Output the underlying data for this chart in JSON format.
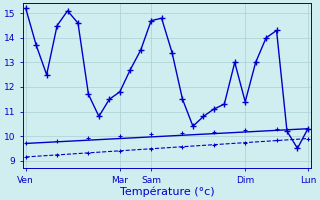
{
  "bg_color": "#d0eef0",
  "grid_color": "#b0d4d8",
  "line_color": "#0000cc",
  "x_tick_labels": {
    "0": "Ven",
    "9": "Mar",
    "12": "Sam",
    "21": "Dim",
    "27": "Lun"
  },
  "ylim": [
    8.7,
    15.4
  ],
  "yticks": [
    9,
    10,
    11,
    12,
    13,
    14,
    15
  ],
  "xlabel": "Température (°c)",
  "main_line_x": [
    0,
    1,
    2,
    3,
    4,
    5,
    6,
    7,
    8,
    9,
    10,
    11,
    12,
    13,
    14,
    15,
    16,
    17,
    18,
    19,
    20,
    21,
    22,
    23,
    24,
    25,
    26,
    27
  ],
  "main_line_y": [
    15.2,
    13.7,
    12.5,
    14.5,
    15.1,
    14.6,
    11.7,
    10.8,
    11.5,
    11.8,
    12.7,
    13.5,
    14.7,
    14.8,
    13.4,
    11.5,
    10.4,
    10.8,
    11.1,
    11.3,
    13.0,
    11.4,
    13.0,
    14.0,
    14.3,
    10.2,
    9.5,
    10.3
  ],
  "upper_trend_x": [
    0,
    27
  ],
  "upper_trend_y": [
    9.7,
    10.3
  ],
  "upper_trend_markers_x": [
    0,
    3,
    6,
    9,
    12,
    15,
    18,
    21,
    24,
    27
  ],
  "upper_trend_markers_y": [
    9.7,
    9.8,
    9.93,
    10.0,
    10.07,
    10.13,
    10.17,
    10.23,
    10.27,
    10.3
  ],
  "lower_trend_x": [
    0,
    27
  ],
  "lower_trend_y": [
    9.15,
    9.9
  ],
  "lower_trend_markers_x": [
    0,
    3,
    6,
    9,
    12,
    15,
    18,
    21,
    24,
    27
  ],
  "lower_trend_markers_y": [
    9.15,
    9.23,
    9.32,
    9.4,
    9.48,
    9.57,
    9.65,
    9.73,
    9.82,
    9.9
  ],
  "xlim": [
    -0.3,
    27.3
  ]
}
